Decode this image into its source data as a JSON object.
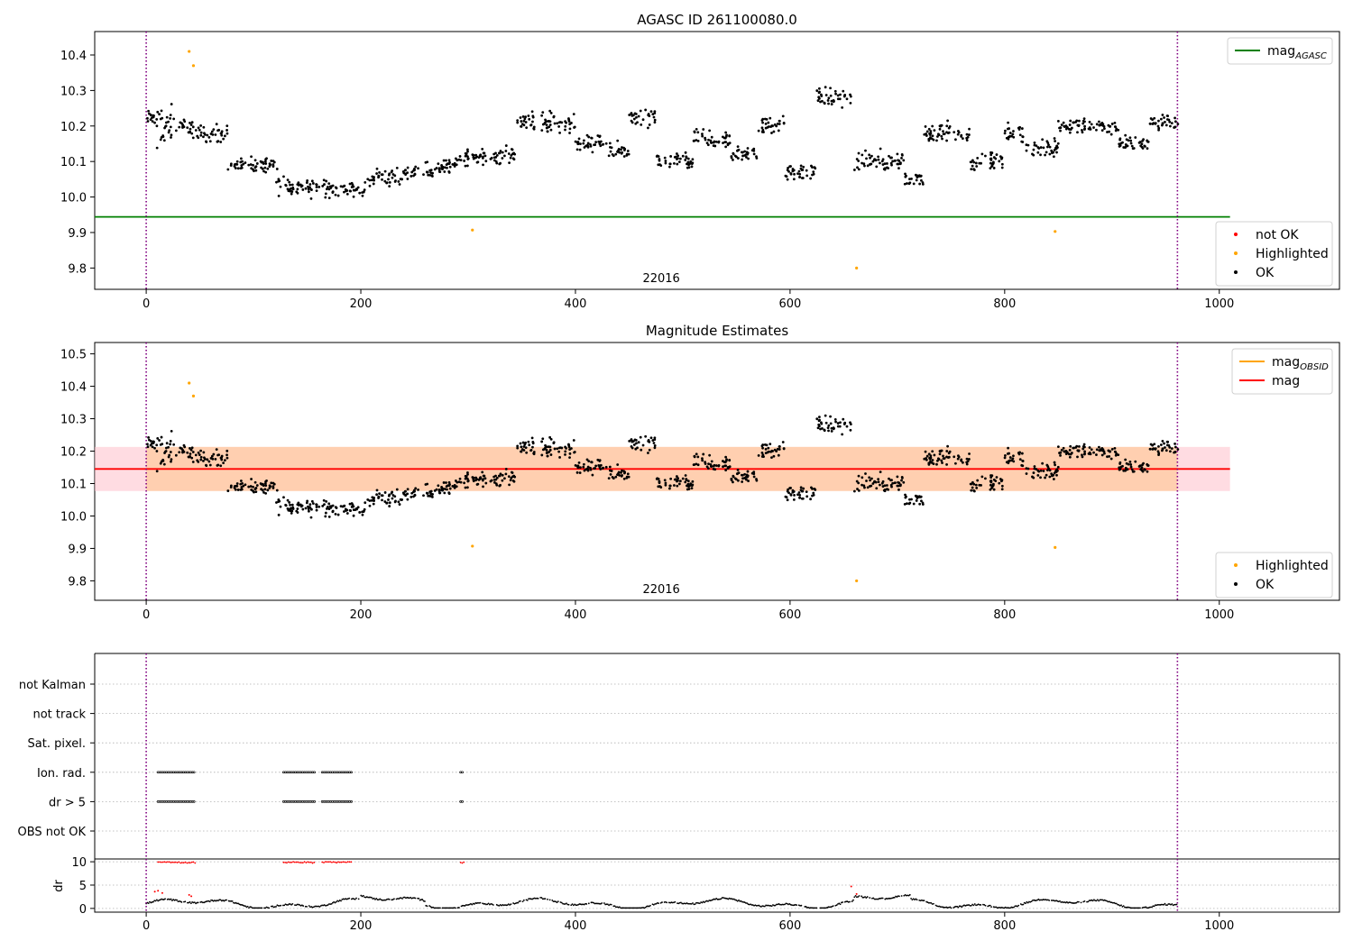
{
  "chart_data": [
    {
      "type": "scatter",
      "title": "AGASC ID 261100080.0",
      "xlabel": "",
      "ylabel": "",
      "xlim": [
        -48,
        1112
      ],
      "ylim": [
        9.74,
        10.466
      ],
      "xticks": [
        0,
        200,
        400,
        600,
        800,
        1000
      ],
      "yticks": [
        9.8,
        9.9,
        10.0,
        10.1,
        10.2,
        10.3,
        10.4
      ],
      "ytick_labels": [
        "9.8",
        "9.9",
        "10.0",
        "10.1",
        "10.2",
        "10.3",
        "10.4"
      ],
      "obsid_label": "22016",
      "obsid_label_x": 480,
      "obsid_boundaries": [
        0,
        961
      ],
      "reference_line": {
        "name": "mag_AGASC",
        "value": 9.944,
        "x_range": [
          -48,
          1010
        ],
        "color": "#008000"
      },
      "highlighted_points": {
        "x": [
          40,
          44,
          304,
          662,
          847
        ],
        "y": [
          10.41,
          10.37,
          9.907,
          9.8,
          9.903
        ]
      },
      "legends": [
        {
          "position": "top-right",
          "entries": [
            {
              "label": "mag",
              "sub": "AGASC",
              "marker": "line",
              "color": "#008000"
            }
          ]
        },
        {
          "position": "bottom-right",
          "entries": [
            {
              "label": "not OK",
              "marker": "dot",
              "color": "#ff0000"
            },
            {
              "label": "Highlighted",
              "marker": "dot",
              "color": "#ffa500"
            },
            {
              "label": "OK",
              "marker": "dot",
              "color": "#000000"
            }
          ]
        }
      ]
    },
    {
      "type": "scatter",
      "title": "Magnitude Estimates",
      "xlabel": "",
      "ylabel": "",
      "xlim": [
        -48,
        1112
      ],
      "ylim": [
        9.74,
        10.535
      ],
      "xticks": [
        0,
        200,
        400,
        600,
        800,
        1000
      ],
      "yticks": [
        9.8,
        9.9,
        10.0,
        10.1,
        10.2,
        10.3,
        10.4,
        10.5
      ],
      "ytick_labels": [
        "9.8",
        "9.9",
        "10.0",
        "10.1",
        "10.2",
        "10.3",
        "10.4",
        "10.5"
      ],
      "obsid_label": "22016",
      "obsid_label_x": 480,
      "obsid_boundaries": [
        0,
        961
      ],
      "mag_line": {
        "name": "mag",
        "value": 10.145,
        "band": [
          10.077,
          10.213
        ],
        "x_range": [
          -48,
          1010
        ],
        "color": "#ff0000"
      },
      "obsid_band": {
        "x_range": [
          0,
          961
        ],
        "band": [
          10.077,
          10.213
        ]
      },
      "highlighted_points": {
        "x": [
          40,
          44,
          304,
          662,
          847
        ],
        "y": [
          10.41,
          10.37,
          9.907,
          9.8,
          9.903
        ]
      },
      "legends": [
        {
          "position": "top-right",
          "entries": [
            {
              "label": "mag",
              "sub": "OBSID",
              "marker": "line",
              "color": "#ffa500"
            },
            {
              "label": "mag",
              "marker": "line",
              "color": "#ff0000"
            }
          ]
        },
        {
          "position": "bottom-right",
          "entries": [
            {
              "label": "Highlighted",
              "marker": "dot",
              "color": "#ffa500"
            },
            {
              "label": "OK",
              "marker": "dot",
              "color": "#000000"
            }
          ]
        }
      ]
    },
    {
      "type": "scatter",
      "title": "",
      "xlabel": "",
      "ylabel": "",
      "xlim": [
        -48,
        1112
      ],
      "xticks": [
        0,
        200,
        400,
        600,
        800,
        1000
      ],
      "obsid_boundaries": [
        0,
        961
      ],
      "flag_rows": [
        "not Kalman",
        "not track",
        "Sat. pixel.",
        "Ion. rad.",
        "dr > 5",
        "OBS not OK"
      ],
      "flag_segments": [
        {
          "rows": [
            "Ion. rad.",
            "dr > 5"
          ],
          "x_range": [
            11,
            46
          ]
        },
        {
          "rows": [
            "Ion. rad.",
            "dr > 5"
          ],
          "x_range": [
            128,
            157
          ]
        },
        {
          "rows": [
            "Ion. rad.",
            "dr > 5"
          ],
          "x_range": [
            164,
            192
          ]
        },
        {
          "rows": [
            "Ion. rad.",
            "dr > 5"
          ],
          "x_range": [
            293,
            296
          ]
        }
      ]
    },
    {
      "type": "scatter",
      "title": "",
      "xlabel": "",
      "ylabel": "dr",
      "xlim": [
        -48,
        1112
      ],
      "ylim": [
        -0.8,
        10.6
      ],
      "yticks": [
        0,
        5,
        10
      ],
      "ytick_labels": [
        "0",
        "5",
        "10"
      ],
      "obsid_boundaries": [
        0,
        961
      ],
      "capped_value": 10,
      "not_ok_points": {
        "x": [
          8,
          11,
          15,
          40,
          42,
          657,
          662
        ],
        "y": [
          3.6,
          3.8,
          3.3,
          2.9,
          2.6,
          4.7,
          3.1
        ]
      }
    }
  ]
}
